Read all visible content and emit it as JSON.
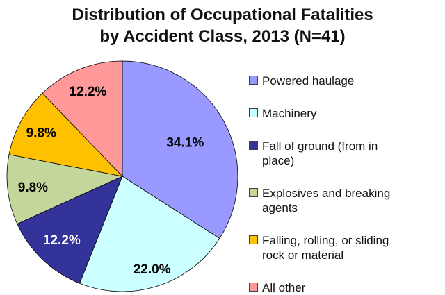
{
  "title": {
    "line1": "Distribution of Occupational Fatalities",
    "line2": "by Accident Class, 2013 (N=41)"
  },
  "chart_data": {
    "type": "pie",
    "title": "Distribution of Occupational Fatalities by Accident Class, 2013 (N=41)",
    "n": 41,
    "start_angle_deg": 0,
    "direction": "clockwise",
    "legend_position": "right",
    "slices": [
      {
        "label": "Powered haulage",
        "value": 34.1,
        "pct_label": "34.1%",
        "color": "#9999FF",
        "label_color": "#000000",
        "label_r": 0.62
      },
      {
        "label": "Machinery",
        "value": 22.0,
        "pct_label": "22.0%",
        "color": "#CCFFFF",
        "label_color": "#000000",
        "label_r": 0.84
      },
      {
        "label": "Fall of ground (from in place)",
        "value": 12.2,
        "pct_label": "12.2%",
        "color": "#333399",
        "label_color": "#FFFFFF",
        "label_r": 0.76
      },
      {
        "label": "Explosives and breaking agents",
        "value": 9.8,
        "pct_label": "9.8%",
        "color": "#C3D69B",
        "label_color": "#000000",
        "label_r": 0.78
      },
      {
        "label": "Falling, rolling, or sliding rock or material",
        "value": 9.8,
        "pct_label": "9.8%",
        "color": "#FFC000",
        "label_color": "#000000",
        "label_r": 0.8
      },
      {
        "label": "All other",
        "value": 12.2,
        "pct_label": "12.2%",
        "color": "#FF9999",
        "label_color": "#000000",
        "label_r": 0.8
      }
    ]
  }
}
